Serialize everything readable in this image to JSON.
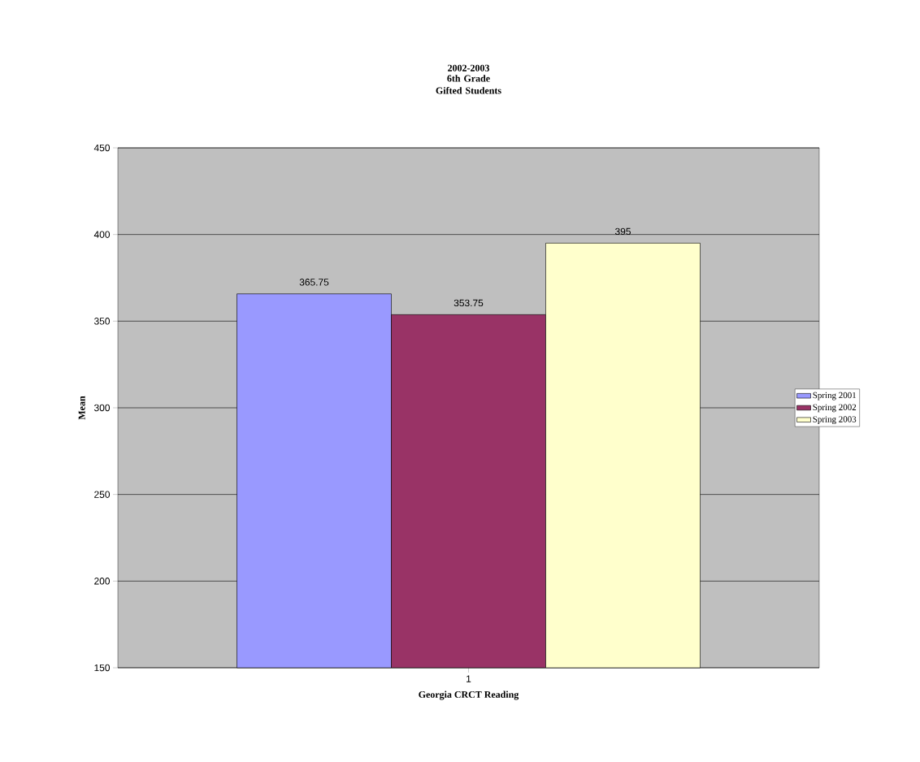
{
  "chart_data": {
    "type": "bar",
    "title": "2002-2003",
    "subtitle": "6th Grade Gifted Students",
    "xlabel": "Georgia CRCT Reading",
    "ylabel": "Mean",
    "categories": [
      "1"
    ],
    "series": [
      {
        "name": "Spring 2001",
        "color": "#9999ff",
        "values": [
          365.75
        ]
      },
      {
        "name": "Spring 2002",
        "color": "#993366",
        "values": [
          353.75
        ]
      },
      {
        "name": "Spring 2003",
        "color": "#ffffcc",
        "values": [
          395
        ]
      }
    ],
    "ylim": [
      150,
      450
    ],
    "yticks": [
      150,
      200,
      250,
      300,
      350,
      400,
      450
    ],
    "grid": "y",
    "legend": "right",
    "data_labels": true
  }
}
